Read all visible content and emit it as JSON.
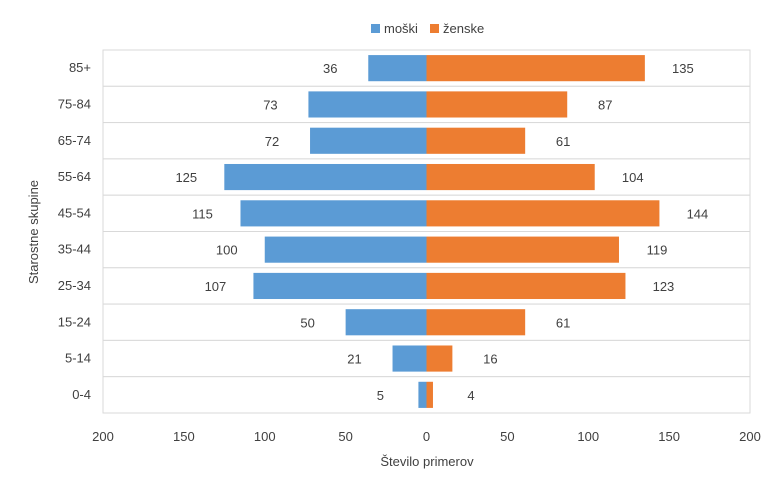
{
  "chart_data": {
    "type": "bar",
    "orientation": "horizontal",
    "subtype": "population-pyramid",
    "title": "",
    "xlabel": "Število primerov",
    "ylabel": "Starostne skupine",
    "xlim": [
      -200,
      200
    ],
    "x_ticks": [
      "200",
      "150",
      "100",
      "50",
      "0",
      "50",
      "100",
      "150",
      "200"
    ],
    "categories": [
      "85+",
      "75-84",
      "65-74",
      "55-64",
      "45-54",
      "35-44",
      "25-34",
      "15-24",
      "5-14",
      "0-4"
    ],
    "series": [
      {
        "name": "moški",
        "side": "left",
        "color": "#5B9BD5",
        "values": [
          36,
          73,
          72,
          125,
          115,
          100,
          107,
          50,
          21,
          5
        ]
      },
      {
        "name": "ženske",
        "side": "right",
        "color": "#ED7D31",
        "values": [
          135,
          87,
          61,
          104,
          144,
          119,
          123,
          61,
          16,
          4
        ]
      }
    ],
    "legend_position": "top",
    "grid": "horizontal-bands"
  }
}
